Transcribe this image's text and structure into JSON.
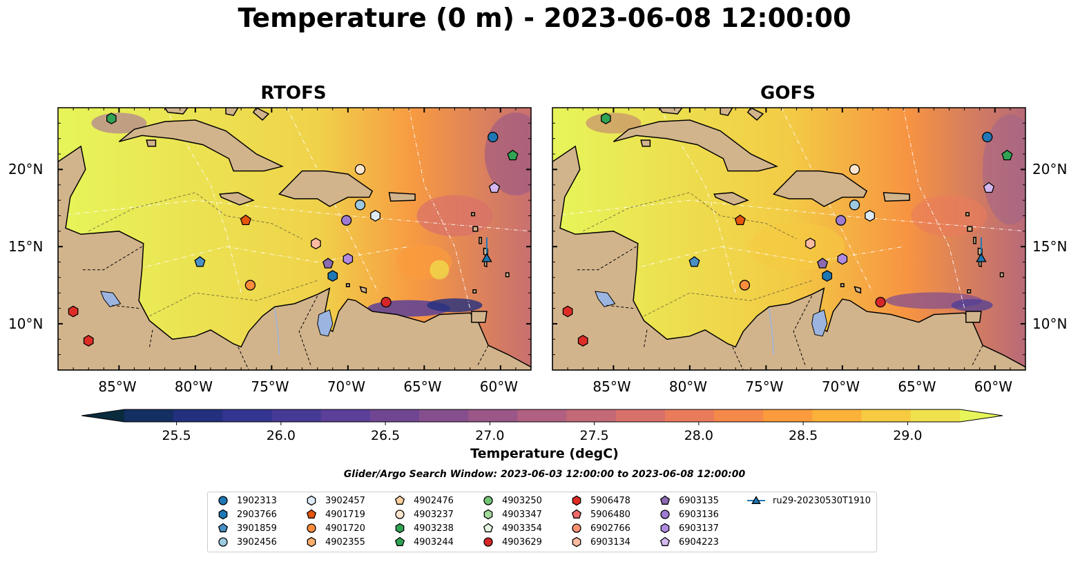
{
  "title": "Temperature (0 m) - 2023-06-08 12:00:00",
  "panels": [
    {
      "title": "RTOFS"
    },
    {
      "title": "GOFS"
    }
  ],
  "map": {
    "lon_range": [
      -89,
      -58
    ],
    "lat_range": [
      7,
      24
    ],
    "lon_ticks": [
      "85°W",
      "80°W",
      "75°W",
      "70°W",
      "65°W",
      "60°W"
    ],
    "lat_ticks": [
      "20°N",
      "15°N",
      "10°N"
    ],
    "land_color": "#d2b48c",
    "lake_color": "#9bb5e0"
  },
  "colorbar": {
    "label": "Temperature (degC)",
    "range": [
      25.25,
      29.25
    ],
    "tick_labels": [
      "25.5",
      "26.0",
      "26.5",
      "27.0",
      "27.5",
      "28.0",
      "28.5",
      "29.0"
    ],
    "tick_values": [
      25.5,
      26.0,
      26.5,
      27.0,
      27.5,
      28.0,
      28.5,
      29.0
    ],
    "colors": [
      "#0a2a3e",
      "#142f62",
      "#23307e",
      "#333590",
      "#463a97",
      "#5b3f98",
      "#704693",
      "#854f8d",
      "#9a5787",
      "#b06080",
      "#c46976",
      "#d8716a",
      "#e97b5b",
      "#f5894a",
      "#fb9b3c",
      "#fcb239",
      "#f6cb41",
      "#efe24c",
      "#e6f55a"
    ],
    "extend": "both"
  },
  "search_window": "Glider/Argo Search Window: 2023-06-03 12:00:00 to 2023-06-08 12:00:00",
  "legend": [
    {
      "label": "1902313",
      "marker": "circle",
      "color": "#1f77b4"
    },
    {
      "label": "2903766",
      "marker": "hexagon",
      "color": "#1f77b4"
    },
    {
      "label": "3901859",
      "marker": "pentagon",
      "color": "#4a90c4"
    },
    {
      "label": "3902456",
      "marker": "circle",
      "color": "#9ecae1"
    },
    {
      "label": "3902457",
      "marker": "hexagon",
      "color": "#deebf7"
    },
    {
      "label": "4901719",
      "marker": "pentagon",
      "color": "#e6550d"
    },
    {
      "label": "4901720",
      "marker": "circle",
      "color": "#fd8d3c"
    },
    {
      "label": "4902355",
      "marker": "hexagon",
      "color": "#fdae6b"
    },
    {
      "label": "4902476",
      "marker": "pentagon",
      "color": "#fdd0a2"
    },
    {
      "label": "4903237",
      "marker": "circle",
      "color": "#fee6ce"
    },
    {
      "label": "4903238",
      "marker": "hexagon",
      "color": "#31a354"
    },
    {
      "label": "4903244",
      "marker": "pentagon",
      "color": "#31a354"
    },
    {
      "label": "4903250",
      "marker": "circle",
      "color": "#74c476"
    },
    {
      "label": "4903347",
      "marker": "hexagon",
      "color": "#a1d99b"
    },
    {
      "label": "4903354",
      "marker": "pentagon",
      "color": "#e5f5e0"
    },
    {
      "label": "4903629",
      "marker": "circle",
      "color": "#d62728"
    },
    {
      "label": "5906478",
      "marker": "hexagon",
      "color": "#de2d26"
    },
    {
      "label": "5906480",
      "marker": "pentagon",
      "color": "#ef6a6a"
    },
    {
      "label": "6902766",
      "marker": "circle",
      "color": "#fc9272"
    },
    {
      "label": "6903134",
      "marker": "hexagon",
      "color": "#fcbba1"
    },
    {
      "label": "6903135",
      "marker": "pentagon",
      "color": "#8c6bb1"
    },
    {
      "label": "6903136",
      "marker": "circle",
      "color": "#9e7bd0"
    },
    {
      "label": "6903137",
      "marker": "hexagon",
      "color": "#b08ae0"
    },
    {
      "label": "6904223",
      "marker": "pentagon",
      "color": "#d4b9f0"
    },
    {
      "label": "ru29-20230530T1910",
      "marker": "triangle-line",
      "color": "#1f77b4"
    }
  ],
  "floats": [
    {
      "lon": -85.5,
      "lat": 23.3,
      "marker": "hexagon",
      "color": "#31a354"
    },
    {
      "lon": -60.5,
      "lat": 22.1,
      "marker": "circle",
      "color": "#1f77b4"
    },
    {
      "lon": -59.2,
      "lat": 20.9,
      "marker": "pentagon",
      "color": "#31a354"
    },
    {
      "lon": -69.2,
      "lat": 20.0,
      "marker": "circle",
      "color": "#fee6ce"
    },
    {
      "lon": -60.4,
      "lat": 18.8,
      "marker": "pentagon",
      "color": "#d4b9f0"
    },
    {
      "lon": -69.2,
      "lat": 17.7,
      "marker": "circle",
      "color": "#9ecae1"
    },
    {
      "lon": -68.2,
      "lat": 17.0,
      "marker": "hexagon",
      "color": "#deebf7"
    },
    {
      "lon": -70.1,
      "lat": 16.7,
      "marker": "circle",
      "color": "#9e7bd0"
    },
    {
      "lon": -76.7,
      "lat": 16.7,
      "marker": "pentagon",
      "color": "#e6550d"
    },
    {
      "lon": -72.1,
      "lat": 15.2,
      "marker": "hexagon",
      "color": "#fcbba1"
    },
    {
      "lon": -79.7,
      "lat": 14.0,
      "marker": "pentagon",
      "color": "#4a90c4"
    },
    {
      "lon": -71.3,
      "lat": 13.9,
      "marker": "pentagon",
      "color": "#8c6bb1"
    },
    {
      "lon": -70.0,
      "lat": 14.2,
      "marker": "hexagon",
      "color": "#b08ae0"
    },
    {
      "lon": -71.0,
      "lat": 13.1,
      "marker": "hexagon",
      "color": "#1f77b4"
    },
    {
      "lon": -76.4,
      "lat": 12.5,
      "marker": "circle",
      "color": "#fd8d3c"
    },
    {
      "lon": -67.5,
      "lat": 11.4,
      "marker": "circle",
      "color": "#d62728"
    },
    {
      "lon": -88.0,
      "lat": 10.8,
      "marker": "hexagon",
      "color": "#de2d26"
    },
    {
      "lon": -87.0,
      "lat": 8.9,
      "marker": "hexagon",
      "color": "#de2d26"
    },
    {
      "lon": -60.9,
      "lat": 14.2,
      "marker": "triangle",
      "color": "#1f77b4"
    }
  ],
  "glider_track": [
    [
      -60.9,
      15.6
    ],
    [
      -60.9,
      14.2
    ]
  ]
}
